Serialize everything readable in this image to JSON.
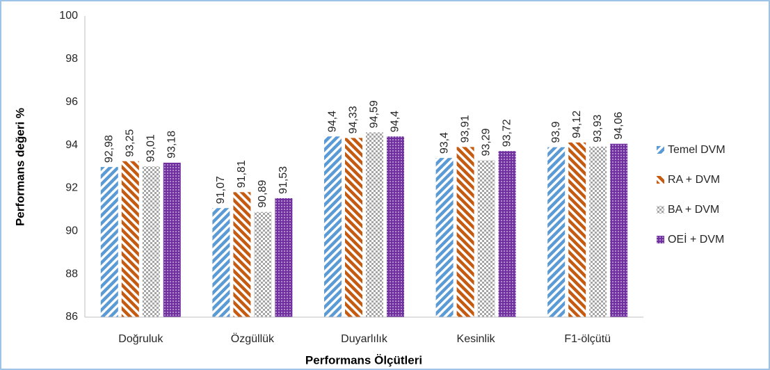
{
  "chart_data": {
    "type": "bar",
    "x_label": "Performans Ölçütleri",
    "y_label": "Performans değeri %",
    "categories": [
      "Doğruluk",
      "Özgüllük",
      "Duyarlılık",
      "Kesinlik",
      "F1-ölçütü"
    ],
    "series": [
      {
        "name": "Temel DVM",
        "color": "#5b9bd5",
        "pattern": "stripes-up",
        "values": [
          92.98,
          91.07,
          94.4,
          93.4,
          93.9
        ],
        "value_labels": [
          "92,98",
          "91,07",
          "94,4",
          "93,4",
          "93,9"
        ]
      },
      {
        "name": "RA + DVM",
        "color": "#c55a11",
        "pattern": "stripes-down",
        "values": [
          93.25,
          91.81,
          94.33,
          93.91,
          94.12
        ],
        "value_labels": [
          "93,25",
          "91,81",
          "94,33",
          "93,91",
          "94,12"
        ]
      },
      {
        "name": "BA + DVM",
        "color": "#a5a5a5",
        "pattern": "checker",
        "values": [
          93.01,
          90.89,
          94.59,
          93.29,
          93.93
        ],
        "value_labels": [
          "93,01",
          "90,89",
          "94,59",
          "93,29",
          "93,93"
        ]
      },
      {
        "name": "OEİ + DVM",
        "color": "#7030a0",
        "pattern": "dots",
        "values": [
          93.18,
          91.53,
          94.4,
          93.72,
          94.06
        ],
        "value_labels": [
          "93,18",
          "91,53",
          "94,4",
          "93,72",
          "94,06"
        ]
      }
    ],
    "ylim": [
      86,
      100
    ],
    "yticks": [
      86,
      88,
      90,
      92,
      94,
      96,
      98,
      100
    ],
    "grid": false,
    "legend": "right"
  }
}
